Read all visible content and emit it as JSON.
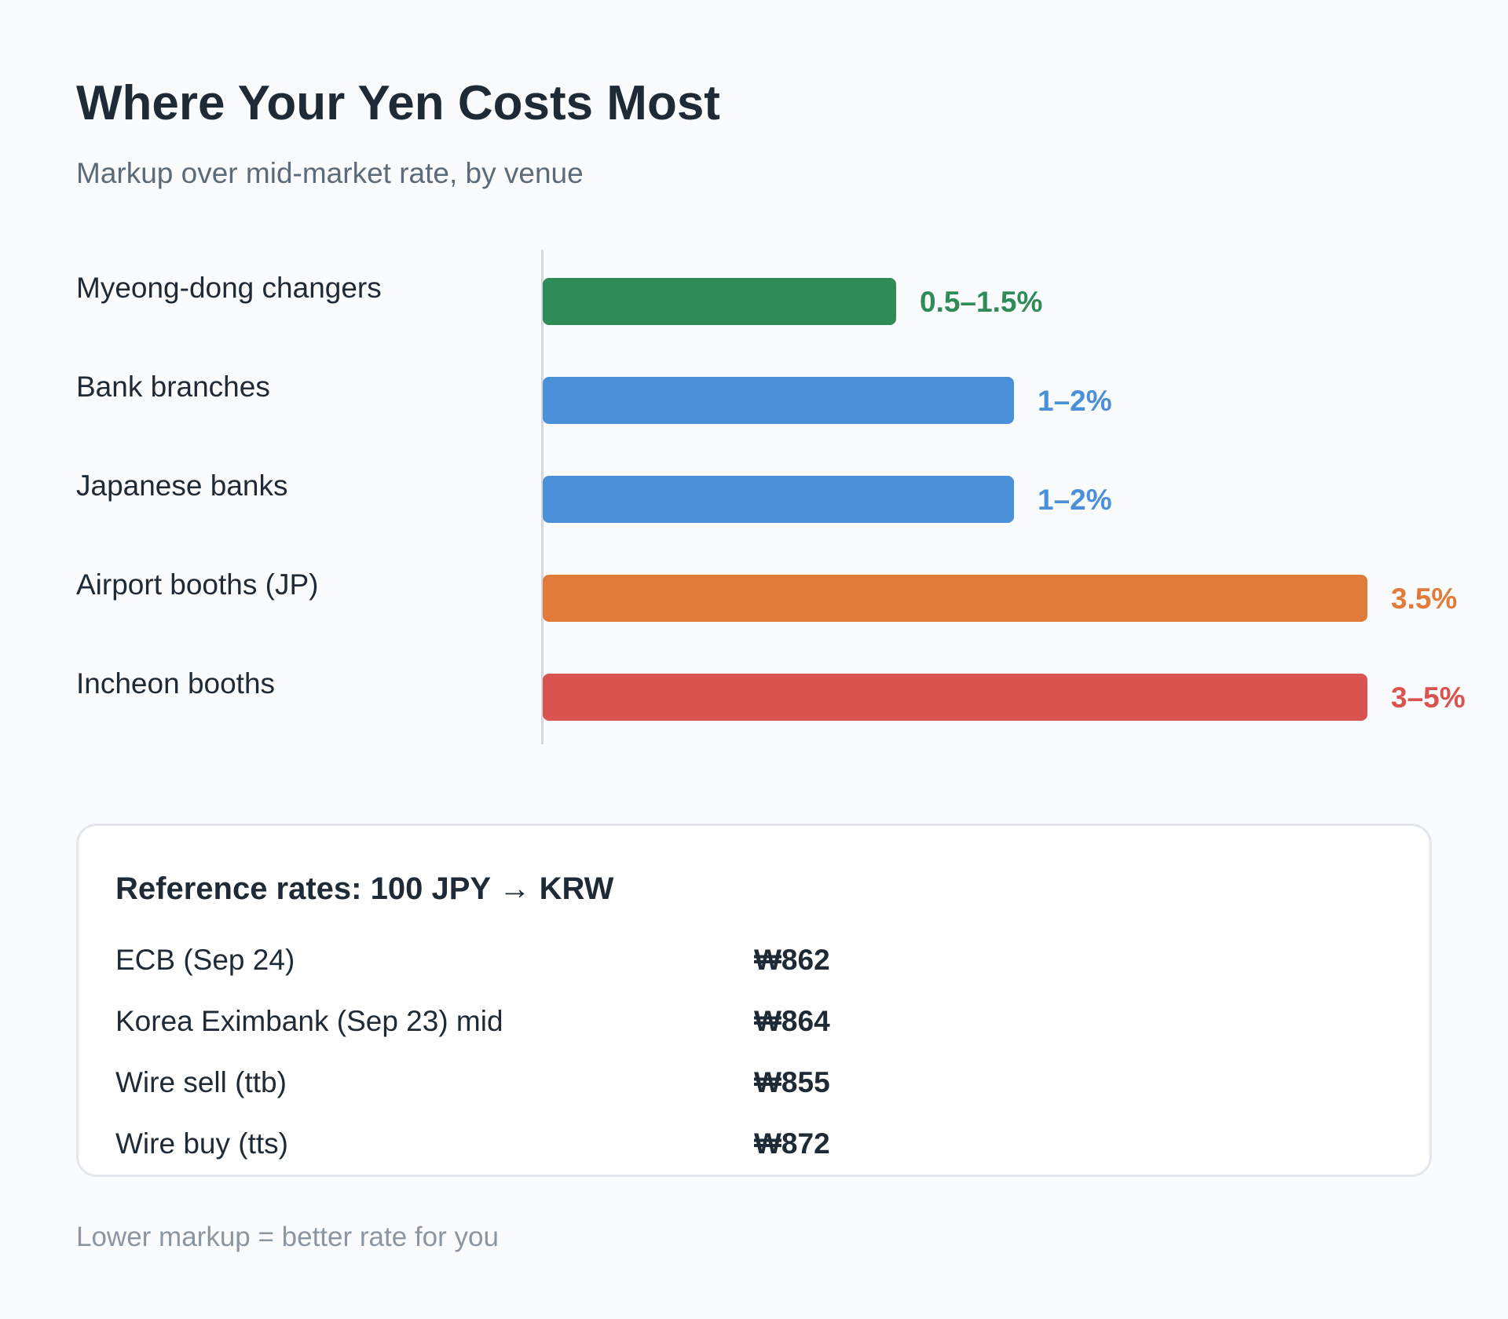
{
  "header": {
    "title": "Where Your Yen Costs Most",
    "subtitle": "Markup over mid-market rate, by venue"
  },
  "chart_data": {
    "type": "bar",
    "orientation": "horizontal",
    "title": "Where Your Yen Costs Most",
    "subtitle": "Markup over mid-market rate, by venue",
    "xlabel": "",
    "ylabel": "",
    "unit": "%",
    "grid": false,
    "xlim": [
      0,
      5
    ],
    "categories": [
      "Myeong-dong changers",
      "Bank branches",
      "Japanese banks",
      "Airport booths (JP)",
      "Incheon booths"
    ],
    "values": [
      1.5,
      2,
      2,
      3.5,
      3.5
    ],
    "ranges": [
      [
        0.5,
        1.5
      ],
      [
        1,
        2
      ],
      [
        1,
        2
      ],
      [
        3.5,
        3.5
      ],
      [
        3,
        5
      ]
    ],
    "data_labels": [
      "0.5–1.5%",
      "1–2%",
      "1–2%",
      "3.5%",
      "3–5%"
    ],
    "colors": [
      "#2f8b57",
      "#4a90d9",
      "#4a90d9",
      "#e07b39",
      "#d9534f"
    ]
  },
  "reference": {
    "title": "Reference rates: 100 JPY → KRW",
    "rows": [
      {
        "label": "ECB (Sep 24)",
        "value": "₩862"
      },
      {
        "label": "Korea Eximbank (Sep 23) mid",
        "value": "₩864"
      },
      {
        "label": "Wire sell (ttb)",
        "value": "₩855"
      },
      {
        "label": "Wire buy (tts)",
        "value": "₩872"
      }
    ]
  },
  "footer": {
    "note": "Lower markup = better rate for you"
  }
}
